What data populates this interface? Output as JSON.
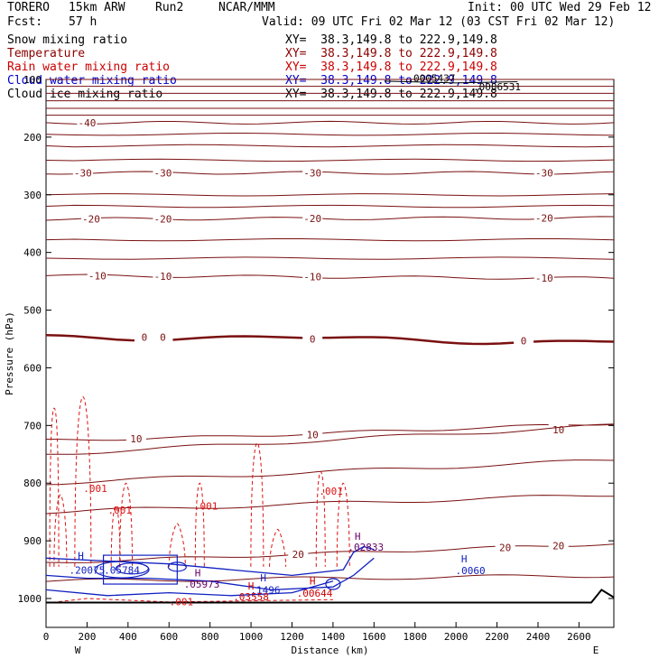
{
  "header": {
    "model": "TORERO",
    "resolution": "15km ARW",
    "run": "Run2",
    "org": "NCAR/MMM",
    "init": "Init: 00 UTC Wed 29 Feb 12",
    "fcst_label": "Fcst:",
    "fcst_value": "57 h",
    "valid": "Valid: 09 UTC Fri 02 Mar 12 (03 CST Fri 02 Mar 12)"
  },
  "legend": [
    {
      "name": "Snow mixing ratio",
      "xy": "XY=  38.3,149.8 to 222.9,149.8",
      "color": "#000000"
    },
    {
      "name": "Temperature",
      "xy": "XY=  38.3,149.8 to 222.9,149.8",
      "color": "#8b0000"
    },
    {
      "name": "Rain water mixing ratio",
      "xy": "XY=  38.3,149.8 to 222.9,149.8",
      "color": "#cc0000"
    },
    {
      "name": "Cloud water mixing ratio",
      "xy": "XY=  38.3,149.8 to 222.9,149.8",
      "color": "#0000cc"
    },
    {
      "name": "Cloud ice mixing ratio",
      "xy": "XY=  38.3,149.8 to 222.9,149.8",
      "color": "#000000"
    }
  ],
  "colors": {
    "temperature": "#7a1010",
    "rain": "#dd1111",
    "cloud_water": "#1020c0",
    "cloud_ice": "#000000",
    "max_label": "#660066"
  },
  "chart_data": {
    "type": "line",
    "title": "",
    "xlabel": "Distance (km)",
    "ylabel": "Pressure (hPa)",
    "xlim": [
      0,
      2770
    ],
    "ylim": [
      1010,
      100
    ],
    "x_ticks": [
      0,
      200,
      400,
      600,
      800,
      1000,
      1200,
      1400,
      1600,
      1800,
      2000,
      2200,
      2400,
      2600
    ],
    "y_ticks": [
      200,
      300,
      400,
      500,
      600,
      700,
      800,
      900,
      1000
    ],
    "y_tick_labels_shown": [
      "200",
      "300",
      "400",
      "500",
      "600",
      "700",
      "800",
      "900",
      "1000"
    ],
    "top_y_label": "100",
    "x_end_labels": {
      "left": "W",
      "right": "E"
    },
    "temperature_isotherms": [
      {
        "value": -40,
        "pressure_left": 175,
        "pressure_right": 175,
        "labels_at_x": [
          200
        ]
      },
      {
        "value": -30,
        "pressure_left": 262,
        "pressure_right": 262,
        "labels_at_x": [
          180,
          570,
          1300,
          2430
        ]
      },
      {
        "value": -20,
        "pressure_left": 342,
        "pressure_right": 340,
        "labels_at_x": [
          220,
          570,
          1300,
          2430
        ]
      },
      {
        "value": -10,
        "pressure_left": 440,
        "pressure_right": 445,
        "labels_at_x": [
          250,
          570,
          1300,
          2430
        ]
      },
      {
        "value": 0,
        "pressure_left": 545,
        "pressure_right": 555,
        "labels_at_x": [
          480,
          570,
          1300,
          2330
        ]
      },
      {
        "value": 10,
        "pressure_left": 726,
        "pressure_right": 705,
        "labels_at_x": [
          440,
          1300,
          2500
        ]
      },
      {
        "value": 20,
        "pressure_left": 938,
        "pressure_right": 905,
        "labels_at_x": [
          1230,
          2240,
          2500
        ]
      }
    ],
    "rain_labels": [
      {
        "text": ".001",
        "x": 240,
        "p": 815
      },
      {
        "text": ".001",
        "x": 360,
        "p": 853
      },
      {
        "text": ".001",
        "x": 780,
        "p": 846
      },
      {
        "text": ".001",
        "x": 1390,
        "p": 820
      },
      {
        "text": ".001",
        "x": 660,
        "p": 1012
      }
    ],
    "max_labels": [
      {
        "text": "H",
        "x": 170,
        "p": 932,
        "color": "#1020c0"
      },
      {
        "text": ".20075",
        "x": 200,
        "p": 957,
        "color": "#1020c0"
      },
      {
        "text": ".05784",
        "x": 370,
        "p": 957,
        "color": "#1020c0"
      },
      {
        "text": "H",
        "x": 740,
        "p": 962,
        "color": "#660066"
      },
      {
        "text": ".05973",
        "x": 760,
        "p": 981,
        "color": "#660066"
      },
      {
        "text": "H",
        "x": 1060,
        "p": 970,
        "color": "#1020c0"
      },
      {
        "text": ".1496",
        "x": 1070,
        "p": 991,
        "color": "#1020c0"
      },
      {
        "text": "H",
        "x": 1000,
        "p": 984,
        "color": "#cc0000"
      },
      {
        "text": ".03558",
        "x": 1000,
        "p": 1003,
        "color": "#cc0000"
      },
      {
        "text": "H",
        "x": 1300,
        "p": 976,
        "color": "#cc0000"
      },
      {
        "text": ".00644",
        "x": 1310,
        "p": 997,
        "color": "#cc0000"
      },
      {
        "text": "H",
        "x": 1520,
        "p": 898,
        "color": "#660066"
      },
      {
        "text": ".02833",
        "x": 1560,
        "p": 917,
        "color": "#660066"
      },
      {
        "text": "H",
        "x": 2040,
        "p": 937,
        "color": "#1020c0"
      },
      {
        "text": ".0060",
        "x": 2070,
        "p": 958,
        "color": "#1020c0"
      }
    ],
    "top_labels": [
      ".0005437",
      ".0006531"
    ],
    "top_label_positions": [
      {
        "x": 1880,
        "p": 104
      },
      {
        "x": 2200,
        "p": 119
      }
    ]
  }
}
